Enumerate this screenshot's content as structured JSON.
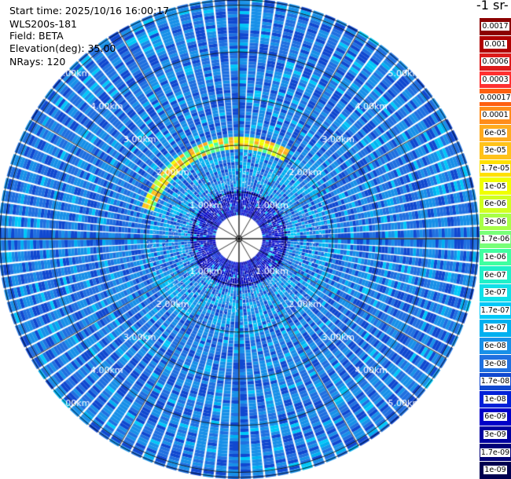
{
  "info": {
    "start_time": "Start time: 2025/10/16 16:00:17",
    "station": "WLS200s-181",
    "field": "Field: BETA",
    "elevation": "Elevation(deg): 35.00",
    "nrays": "NRays: 120"
  },
  "unit_label": "-1 sr-",
  "range_rings": [
    {
      "label": "1.00km",
      "km": 1
    },
    {
      "label": "2.00km",
      "km": 2
    },
    {
      "label": "3.00km",
      "km": 3
    },
    {
      "label": "4.00km",
      "km": 4
    },
    {
      "label": "5.00km",
      "km": 5
    }
  ],
  "colorbar": [
    {
      "label": "0.0017",
      "color": "#8b0000"
    },
    {
      "label": "0.001",
      "color": "#b00000"
    },
    {
      "label": "0.0006",
      "color": "#dd1a1a"
    },
    {
      "label": "0.0003",
      "color": "#ff3030"
    },
    {
      "label": "0.00017",
      "color": "#ff6010"
    },
    {
      "label": "0.0001",
      "color": "#ff8c1a"
    },
    {
      "label": "6e-05",
      "color": "#ffab1f"
    },
    {
      "label": "3e-05",
      "color": "#ffc21a"
    },
    {
      "label": "1.7e-05",
      "color": "#ffe000"
    },
    {
      "label": "1e-05",
      "color": "#f0ff00"
    },
    {
      "label": "6e-06",
      "color": "#d0ff20"
    },
    {
      "label": "3e-06",
      "color": "#a8ff48"
    },
    {
      "label": "1.7e-06",
      "color": "#78ff78"
    },
    {
      "label": "1e-06",
      "color": "#40ffa0"
    },
    {
      "label": "6e-07",
      "color": "#20f0c8"
    },
    {
      "label": "3e-07",
      "color": "#10e0e8"
    },
    {
      "label": "1.7e-07",
      "color": "#00c8f8"
    },
    {
      "label": "1e-07",
      "color": "#00b0f0"
    },
    {
      "label": "6e-08",
      "color": "#1890e8"
    },
    {
      "label": "3e-08",
      "color": "#2070e0"
    },
    {
      "label": "1.7e-08",
      "color": "#1048d0"
    },
    {
      "label": "1e-08",
      "color": "#0020d8"
    },
    {
      "label": "6e-09",
      "color": "#0000c8"
    },
    {
      "label": "3e-09",
      "color": "#0000a0"
    },
    {
      "label": "1.7e-09",
      "color": "#000078"
    },
    {
      "label": "1e-09",
      "color": "#000050"
    }
  ]
}
